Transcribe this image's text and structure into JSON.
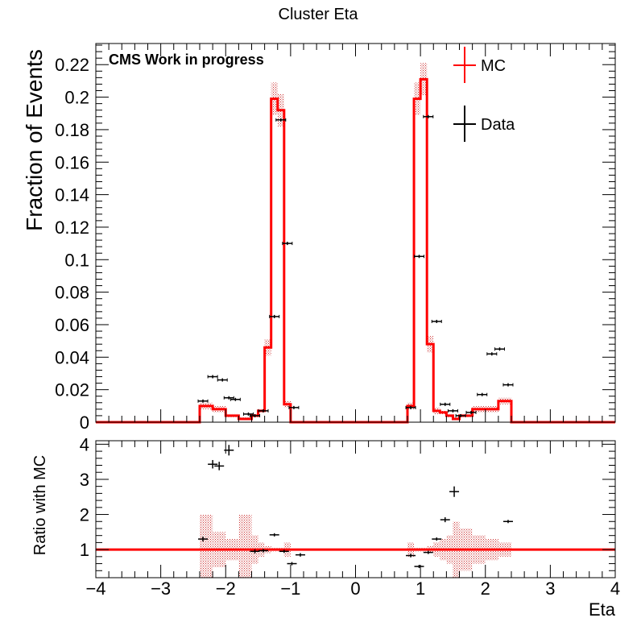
{
  "chart_data": {
    "type": "histogram",
    "title": "Cluster Eta",
    "annotation": "CMS Work in progress",
    "xlabel": "Eta",
    "x_ticks": [
      "−4",
      "−3",
      "−2",
      "−1",
      "0",
      "1",
      "2",
      "3",
      "4"
    ],
    "x_tick_values": [
      -4,
      -3,
      -2,
      -1,
      0,
      1,
      2,
      3,
      4
    ],
    "xlim": [
      -4,
      4
    ],
    "legend": {
      "placement": "top-right",
      "entries": [
        {
          "name": "MC",
          "color": "#ff0000"
        },
        {
          "name": "Data",
          "color": "#000000"
        }
      ]
    },
    "colors": {
      "mc": "#ff0000",
      "mc_band": "#cc3333",
      "data": "#000000"
    },
    "bin_edges": [
      -4.0,
      -3.8,
      -3.6,
      -3.4,
      -3.2,
      -3.0,
      -2.8,
      -2.6,
      -2.4,
      -2.2,
      -2.0,
      -1.8,
      -1.6,
      -1.5,
      -1.4,
      -1.3,
      -1.2,
      -1.1,
      -1.0,
      -0.9,
      -0.8,
      -0.6,
      -0.4,
      -0.2,
      0.0,
      0.2,
      0.4,
      0.6,
      0.8,
      0.9,
      1.0,
      1.1,
      1.2,
      1.3,
      1.4,
      1.5,
      1.6,
      1.8,
      2.0,
      2.2,
      2.4,
      2.6,
      2.8,
      3.0,
      3.2,
      3.4,
      3.6,
      3.8,
      4.0
    ],
    "main_panel": {
      "ylabel": "Fraction of Events",
      "ylim": [
        0,
        0.233
      ],
      "y_ticks": [
        "0",
        "0.02",
        "0.04",
        "0.06",
        "0.08",
        "0.1",
        "0.12",
        "0.14",
        "0.16",
        "0.18",
        "0.2",
        "0.22"
      ],
      "y_tick_values": [
        0,
        0.02,
        0.04,
        0.06,
        0.08,
        0.1,
        0.12,
        0.14,
        0.16,
        0.18,
        0.2,
        0.22
      ],
      "mc_values": [
        0,
        0,
        0,
        0,
        0,
        0,
        0,
        0,
        0.01,
        0.008,
        0.004,
        0.002,
        0.004,
        0.007,
        0.046,
        0.199,
        0.192,
        0.011,
        0,
        0,
        0,
        0,
        0,
        0,
        0,
        0,
        0,
        0,
        0.01,
        0.199,
        0.211,
        0.048,
        0.007,
        0.006,
        0.004,
        0.002,
        0.004,
        0.008,
        0.008,
        0.013,
        0,
        0,
        0,
        0,
        0,
        0,
        0,
        0
      ],
      "mc_errors": [
        0,
        0,
        0,
        0,
        0,
        0,
        0,
        0,
        0.002,
        0.002,
        0.001,
        0.001,
        0.001,
        0.001,
        0.005,
        0.01,
        0.01,
        0.002,
        0,
        0,
        0,
        0,
        0,
        0,
        0,
        0,
        0,
        0,
        0.002,
        0.01,
        0.01,
        0.005,
        0.002,
        0.001,
        0.001,
        0.001,
        0.001,
        0.002,
        0.002,
        0.002,
        0,
        0,
        0,
        0,
        0,
        0,
        0,
        0
      ],
      "data_points": [
        {
          "x": -2.35,
          "y": 0.013
        },
        {
          "x": -2.2,
          "y": 0.028
        },
        {
          "x": -2.05,
          "y": 0.026
        },
        {
          "x": -1.95,
          "y": 0.015
        },
        {
          "x": -1.85,
          "y": 0.014
        },
        {
          "x": -1.65,
          "y": 0.005
        },
        {
          "x": -1.55,
          "y": 0.004
        },
        {
          "x": -1.42,
          "y": 0.007
        },
        {
          "x": -1.25,
          "y": 0.065
        },
        {
          "x": -1.15,
          "y": 0.186
        },
        {
          "x": -1.05,
          "y": 0.11
        },
        {
          "x": -0.95,
          "y": 0.009
        },
        {
          "x": 0.85,
          "y": 0.009
        },
        {
          "x": 0.98,
          "y": 0.102
        },
        {
          "x": 1.12,
          "y": 0.188
        },
        {
          "x": 1.25,
          "y": 0.062
        },
        {
          "x": 1.38,
          "y": 0.011
        },
        {
          "x": 1.5,
          "y": 0.007
        },
        {
          "x": 1.62,
          "y": 0.004
        },
        {
          "x": 1.78,
          "y": 0.006
        },
        {
          "x": 1.95,
          "y": 0.017
        },
        {
          "x": 2.1,
          "y": 0.042
        },
        {
          "x": 2.22,
          "y": 0.045
        },
        {
          "x": 2.35,
          "y": 0.023
        }
      ]
    },
    "ratio_panel": {
      "ylabel": "Ratio with MC",
      "ylim": [
        0.2,
        4.1
      ],
      "y_ticks": [
        "1",
        "2",
        "3",
        "4"
      ],
      "y_tick_values": [
        1,
        2,
        3,
        4
      ],
      "reference_line": 1,
      "band_errors": [
        0,
        0,
        0,
        0,
        0,
        0,
        0,
        0,
        1.0,
        0.5,
        0.3,
        1.0,
        0.4,
        0.2,
        0.1,
        0.05,
        0.05,
        0.2,
        0,
        0,
        0,
        0,
        0,
        0,
        0,
        0,
        0,
        0,
        0.2,
        0.05,
        0.05,
        0.1,
        0.2,
        0.3,
        0.4,
        0.8,
        0.6,
        0.4,
        0.3,
        0.2,
        0,
        0,
        0,
        0,
        0,
        0,
        0,
        0
      ],
      "data_points": [
        {
          "x": -2.35,
          "y": 1.3
        },
        {
          "x": -2.2,
          "y": 3.43
        },
        {
          "x": -2.1,
          "y": 3.38
        },
        {
          "x": -1.95,
          "y": 3.83
        },
        {
          "x": -1.55,
          "y": 0.95
        },
        {
          "x": -1.42,
          "y": 0.97
        },
        {
          "x": -1.25,
          "y": 1.42
        },
        {
          "x": -1.1,
          "y": 0.95
        },
        {
          "x": -0.98,
          "y": 0.6
        },
        {
          "x": -0.85,
          "y": 0.85
        },
        {
          "x": 0.85,
          "y": 0.83
        },
        {
          "x": 0.98,
          "y": 0.52
        },
        {
          "x": 1.12,
          "y": 0.92
        },
        {
          "x": 1.25,
          "y": 1.3
        },
        {
          "x": 1.38,
          "y": 1.85
        },
        {
          "x": 1.52,
          "y": 2.65
        },
        {
          "x": 2.35,
          "y": 1.8
        }
      ],
      "data_errors": [
        0.07,
        0.12,
        0.12,
        0.15,
        0.06,
        0.05,
        0.03,
        0.03,
        0.03,
        0.05,
        0.05,
        0.03,
        0.02,
        0.04,
        0.07,
        0.15,
        0.04
      ]
    }
  }
}
